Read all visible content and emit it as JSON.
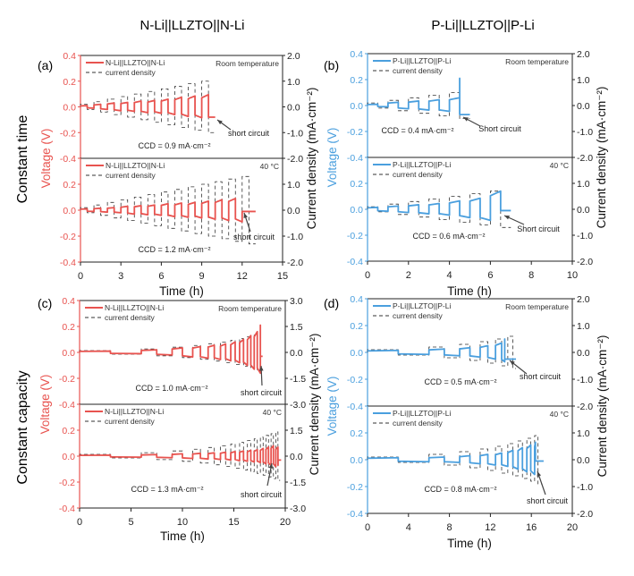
{
  "column_titles": [
    "N-Li||LLZTO||N-Li",
    "P-Li||LLZTO||P-Li"
  ],
  "row_labels": [
    "Constant time",
    "Constant capacity"
  ],
  "colors": {
    "n_li": "#e8534f",
    "p_li": "#4a9fde",
    "current": "#333333",
    "axis": "#222222"
  },
  "chart_data": [
    {
      "panel": "(a)",
      "type": "line",
      "color_key": "n_li",
      "xlabel": "Time (h)",
      "xlim": [
        0,
        15
      ],
      "xticks": [
        0,
        3,
        6,
        9,
        12,
        15
      ],
      "ylabel": "Voltage (V)",
      "ylim": [
        -0.4,
        0.4
      ],
      "yticks": [
        0.4,
        0.2,
        0.0,
        -0.2,
        -0.4
      ],
      "y2label": "Current density (mA·cm⁻²)",
      "y2lim": [
        -2.0,
        2.0
      ],
      "y2ticks": [
        2.0,
        1.0,
        0.0,
        -1.0,
        -2.0
      ],
      "subplots": [
        {
          "legend": [
            "N-Li||LLZTO||N-Li",
            "current density"
          ],
          "condition": "Room temperature",
          "ccd": "CCD = 0.9 mA·cm⁻²",
          "annotation": "short circuit",
          "current": [
            0.1,
            0.2,
            0.3,
            0.4,
            0.5,
            0.6,
            0.7,
            0.8,
            0.9,
            1.0
          ],
          "voltage": [
            0.01,
            0.02,
            0.03,
            0.035,
            0.045,
            0.05,
            0.06,
            0.075,
            0.085,
            0.095
          ],
          "half_cycle_h": [
            0.5,
            0.5,
            0.5,
            0.5,
            0.5,
            0.5,
            0.5,
            0.5,
            0.5,
            0.5
          ],
          "short_time": 9.5,
          "spike": null,
          "post_voltage": -0.08,
          "end_time": 10
        },
        {
          "legend": [
            "N-Li||LLZTO||N-Li",
            "current density"
          ],
          "condition": "40 °C",
          "ccd": "CCD = 1.2 mA·cm⁻²",
          "annotation": "short circuit",
          "current": [
            0.1,
            0.2,
            0.3,
            0.4,
            0.5,
            0.6,
            0.7,
            0.8,
            0.9,
            1.0,
            1.1,
            1.2,
            1.3
          ],
          "voltage": [
            0.01,
            0.015,
            0.02,
            0.03,
            0.035,
            0.04,
            0.05,
            0.055,
            0.06,
            0.07,
            0.08,
            0.09,
            0.1
          ],
          "half_cycle_h": [
            0.5,
            0.5,
            0.5,
            0.5,
            0.5,
            0.5,
            0.5,
            0.5,
            0.5,
            0.5,
            0.5,
            0.5,
            0.5
          ],
          "short_time": 12,
          "spike": null,
          "post_voltage": -0.01,
          "end_time": 13
        }
      ]
    },
    {
      "panel": "(b)",
      "type": "line",
      "color_key": "p_li",
      "xlabel": "Time (h)",
      "xlim": [
        0,
        10
      ],
      "xticks": [
        0,
        2,
        4,
        6,
        8,
        10
      ],
      "ylabel": "Voltage (V)",
      "ylim": [
        -0.4,
        0.4
      ],
      "yticks": [
        0.4,
        0.2,
        0.0,
        -0.2,
        -0.4
      ],
      "y2label": "Current density (mA·cm⁻²)",
      "y2lim": [
        -2.0,
        2.0
      ],
      "y2ticks": [
        2.0,
        1.0,
        0.0,
        -1.0,
        -2.0
      ],
      "subplots": [
        {
          "legend": [
            "P-Li||LLZTO||P-Li",
            "current density"
          ],
          "condition": "Room temperature",
          "ccd": "CCD = 0.4 mA·cm⁻²",
          "annotation": "Short circuit",
          "current": [
            0.1,
            0.2,
            0.3,
            0.4,
            0.5
          ],
          "voltage": [
            0.01,
            0.025,
            0.035,
            0.045,
            0.06
          ],
          "half_cycle_h": [
            0.5,
            0.5,
            0.5,
            0.5,
            0.5
          ],
          "short_time": 4.5,
          "spike": 0.21,
          "post_voltage": -0.07,
          "end_time": 5
        },
        {
          "legend": [
            "P-Li||LLZTO||P-Li",
            "current density"
          ],
          "condition": "40 °C",
          "ccd": "CCD = 0.6 mA·cm⁻²",
          "annotation": "Short circuit",
          "current": [
            0.1,
            0.2,
            0.3,
            0.4,
            0.5,
            0.6,
            0.7
          ],
          "voltage": [
            0.015,
            0.025,
            0.035,
            0.045,
            0.065,
            0.085,
            0.14
          ],
          "half_cycle_h": [
            0.5,
            0.5,
            0.5,
            0.5,
            0.5,
            0.5,
            0.5
          ],
          "short_time": 6.5,
          "spike": null,
          "post_voltage": -0.01,
          "end_time": 7
        }
      ]
    },
    {
      "panel": "(c)",
      "type": "line",
      "color_key": "n_li",
      "xlabel": "Time (h)",
      "xlim": [
        0,
        20
      ],
      "xticks": [
        0,
        5,
        10,
        15,
        20
      ],
      "ylabel": "Voltage (V)",
      "ylim": [
        -0.4,
        0.4
      ],
      "yticks": [
        0.4,
        0.2,
        0.0,
        -0.2,
        -0.4
      ],
      "y2label": "Current density (mA·cm⁻²)",
      "y2lim": [
        -3.0,
        3.0
      ],
      "y2ticks": [
        3.0,
        1.5,
        0.0,
        -1.5,
        -3.0
      ],
      "subplots": [
        {
          "legend": [
            "N-Li||LLZTO||N-Li",
            "current density"
          ],
          "condition": "Room temperature",
          "ccd": "CCD = 1.0 mA·cm⁻²",
          "annotation": "short circuit",
          "current": [
            0.1,
            0.2,
            0.3,
            0.4,
            0.5,
            0.6,
            0.7,
            0.8,
            0.9,
            1.0
          ],
          "voltage": [
            0.01,
            0.02,
            0.035,
            0.045,
            0.055,
            0.065,
            0.08,
            0.1,
            0.13,
            0.16
          ],
          "half_cycle_h": [
            3,
            1.5,
            1,
            0.75,
            0.6,
            0.5,
            0.43,
            0.38,
            0.33,
            0.3
          ],
          "short_time": 17.58,
          "spike": 0.21,
          "post_voltage": -0.03,
          "end_time": 17.8
        },
        {
          "legend": [
            "N-Li||LLZTO||N-Li",
            "current density"
          ],
          "condition": "40 °C",
          "ccd": "CCD = 1.3 mA·cm⁻²",
          "annotation": "short circuit",
          "current": [
            0.1,
            0.2,
            0.3,
            0.4,
            0.5,
            0.6,
            0.7,
            0.8,
            0.9,
            1.0,
            1.1,
            1.2,
            1.3,
            1.4
          ],
          "voltage": [
            0.008,
            0.012,
            0.018,
            0.022,
            0.026,
            0.03,
            0.035,
            0.04,
            0.045,
            0.05,
            0.06,
            0.07,
            0.08,
            0.07
          ],
          "half_cycle_h": [
            3,
            1.5,
            1,
            0.75,
            0.6,
            0.5,
            0.43,
            0.38,
            0.33,
            0.3,
            0.27,
            0.25,
            0.23,
            0.21
          ],
          "short_time": 19.3,
          "spike": null,
          "post_voltage": -0.03,
          "end_time": 19.6
        }
      ]
    },
    {
      "panel": "(d)",
      "type": "line",
      "color_key": "p_li",
      "xlabel": "Time (h)",
      "xlim": [
        0,
        20
      ],
      "xticks": [
        0,
        4,
        8,
        12,
        16,
        20
      ],
      "ylabel": "Voltage (V)",
      "ylim": [
        -0.4,
        0.4
      ],
      "yticks": [
        0.4,
        0.2,
        0.0,
        -0.2,
        -0.4
      ],
      "y2label": "Current density (mA·cm⁻²)",
      "y2lim": [
        -2.0,
        2.0
      ],
      "y2ticks": [
        2.0,
        1.0,
        0.0,
        -1.0,
        -2.0
      ],
      "subplots": [
        {
          "legend": [
            "P-Li||LLZTO||P-Li",
            "current density"
          ],
          "condition": "Room temperature",
          "ccd": "CCD = 0.5 mA·cm⁻²",
          "annotation": "short circuit",
          "current": [
            0.1,
            0.2,
            0.3,
            0.4,
            0.5,
            0.6
          ],
          "voltage": [
            0.015,
            0.025,
            0.035,
            0.05,
            0.07,
            0.085
          ],
          "half_cycle_h": [
            3,
            1.5,
            1,
            0.75,
            0.6,
            0.5
          ],
          "short_time": 13.4,
          "spike": 0.1,
          "post_voltage": -0.05,
          "end_time": 14.5
        },
        {
          "legend": [
            "P-Li||LLZTO||P-Li",
            "current density"
          ],
          "condition": "40 °C",
          "ccd": "CCD = 0.8 mA·cm⁻²",
          "annotation": "short circuit",
          "current": [
            0.1,
            0.2,
            0.3,
            0.4,
            0.5,
            0.6,
            0.7,
            0.8,
            0.9
          ],
          "voltage": [
            0.015,
            0.02,
            0.03,
            0.04,
            0.05,
            0.07,
            0.09,
            0.11,
            0.13
          ],
          "half_cycle_h": [
            3,
            1.5,
            1,
            0.75,
            0.6,
            0.5,
            0.43,
            0.38,
            0.33
          ],
          "short_time": 16.4,
          "spike": null,
          "post_voltage": -0.01,
          "end_time": 17.2
        }
      ]
    }
  ]
}
